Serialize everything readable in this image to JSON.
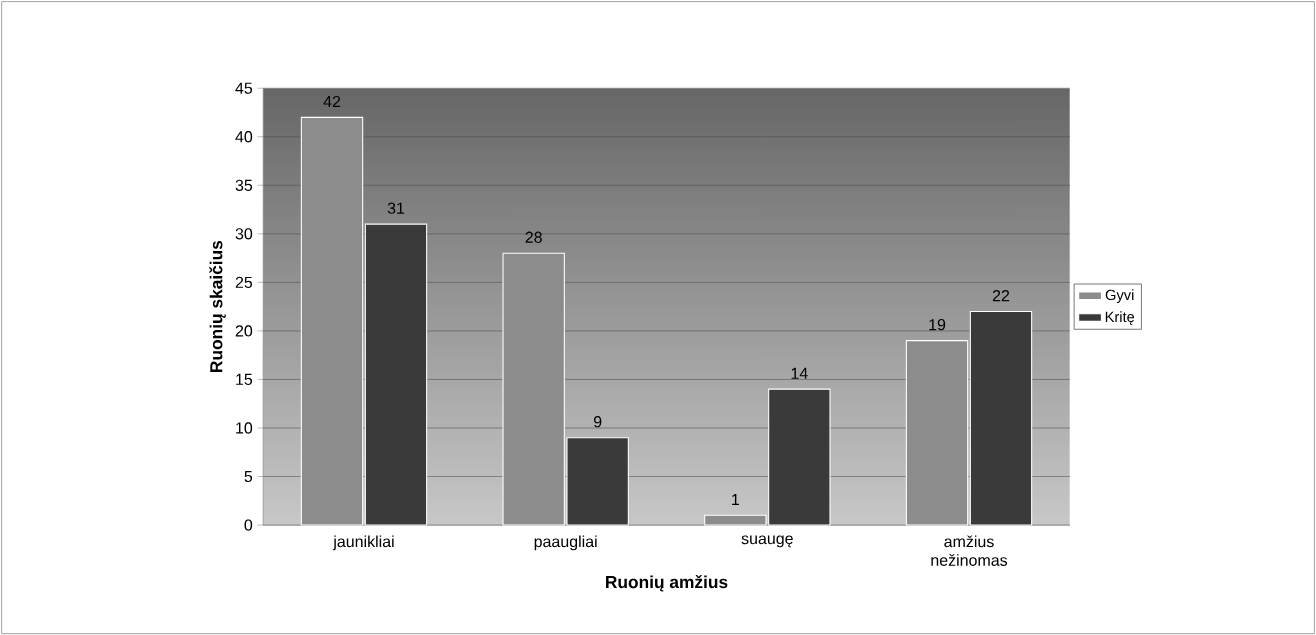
{
  "chart_data": {
    "type": "bar",
    "xlabel": "Ruonių amžius",
    "ylabel": "Ruonių skaičius",
    "categories": [
      "jaunikliai",
      "paaugliai",
      "suaugę",
      "amžius nežinomas"
    ],
    "series": [
      {
        "name": "Gyvi",
        "color": "#8c8c8c",
        "values": [
          42,
          28,
          1,
          19
        ]
      },
      {
        "name": "Kritę",
        "color": "#3a3a3a",
        "values": [
          31,
          9,
          14,
          22
        ]
      }
    ],
    "ylim": [
      0,
      45
    ],
    "yticks": [
      0,
      5,
      10,
      15,
      20,
      25,
      30,
      35,
      40,
      45
    ],
    "grid": "y",
    "legend": "right",
    "data_labels": true
  }
}
